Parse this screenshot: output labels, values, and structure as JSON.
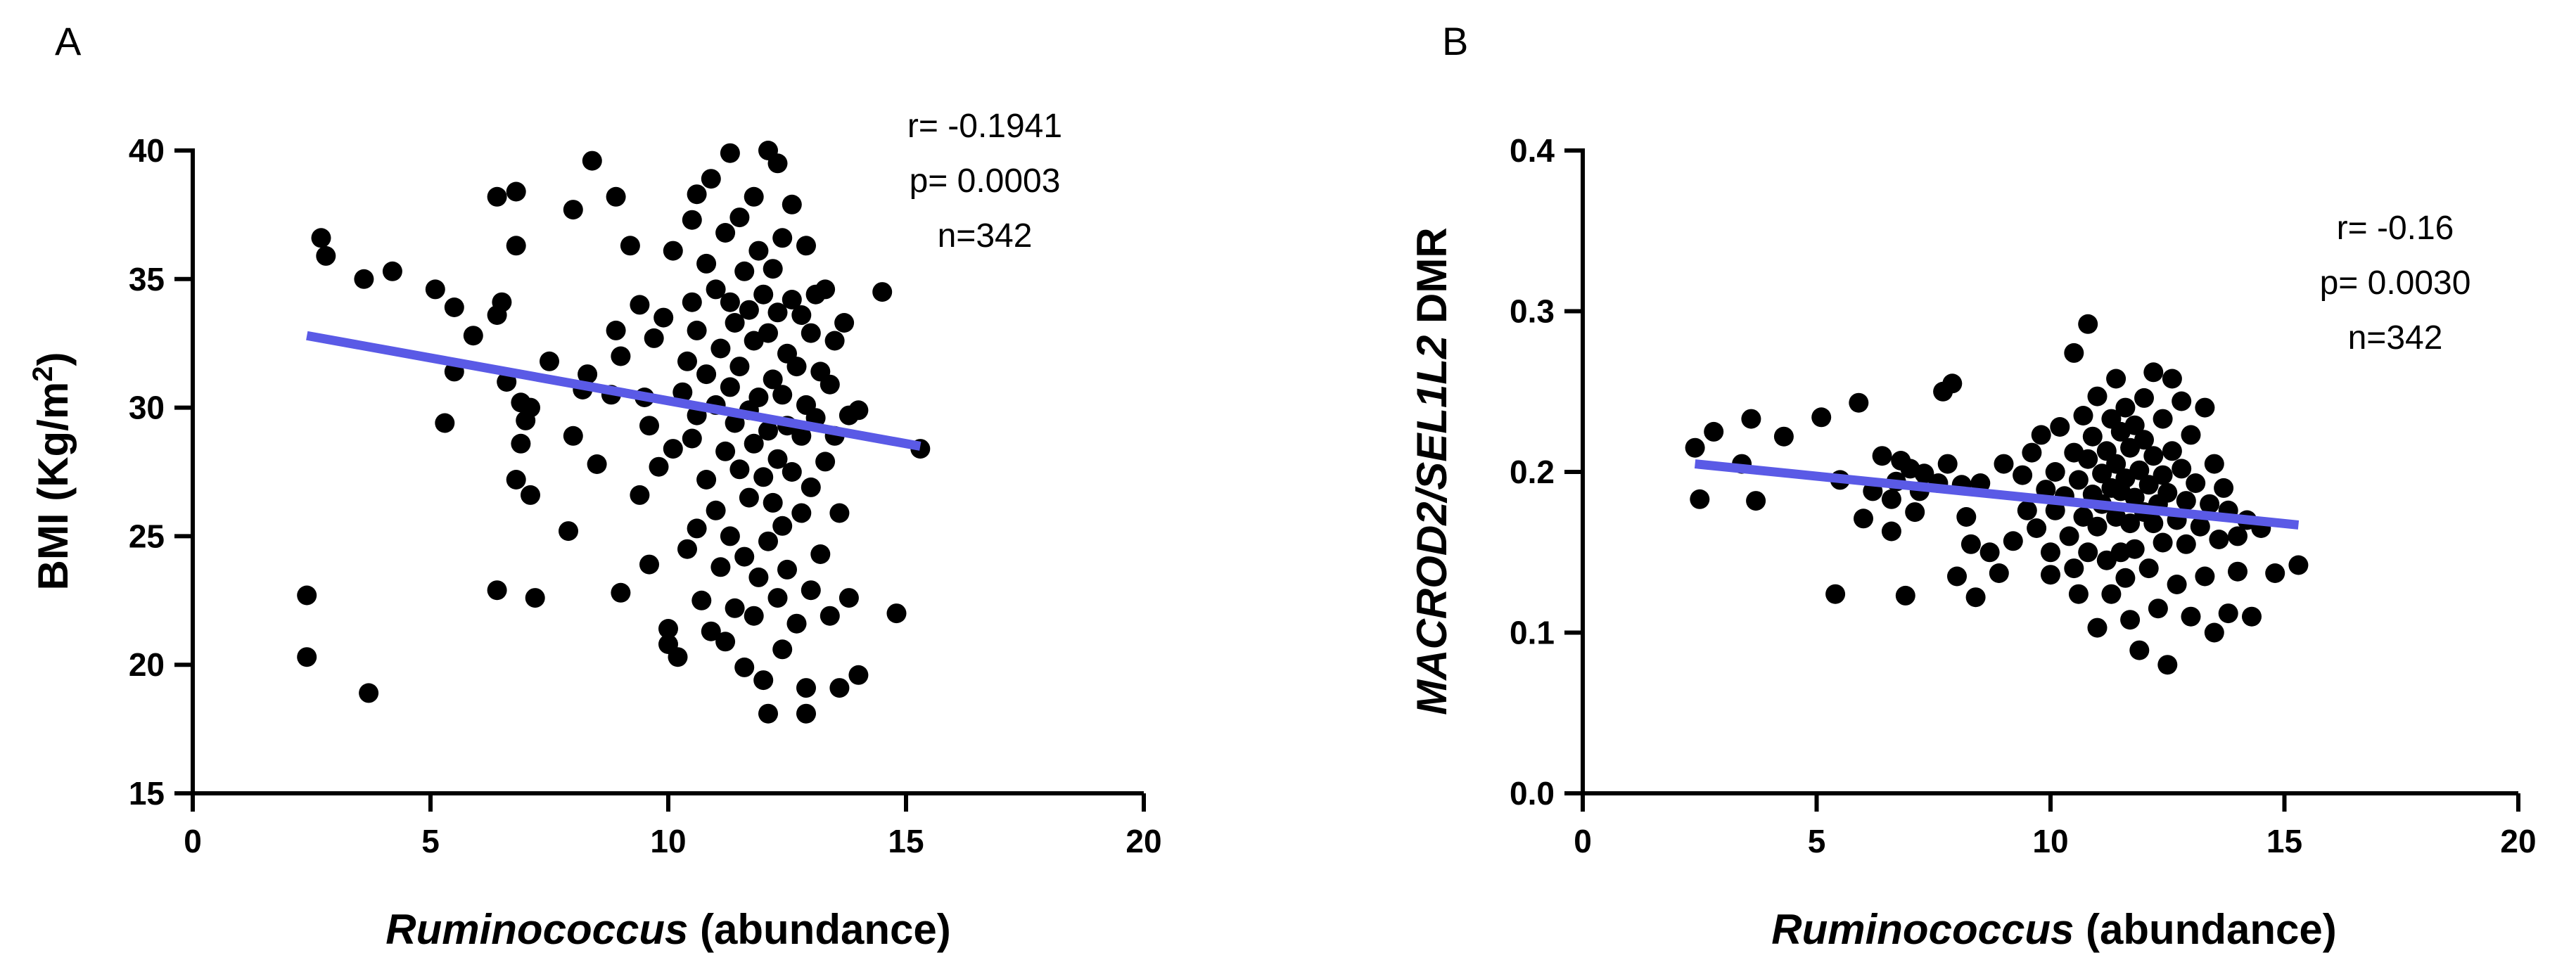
{
  "chart_data": [
    {
      "type": "scatter",
      "panel_label": "A",
      "xlabel_italic": "Ruminococcus",
      "xlabel_rest": " (abundance)",
      "ylabel": "BMI (Kg/m",
      "ylabel_sup": "2",
      "ylabel_close": ")",
      "xlim": [
        0,
        20
      ],
      "ylim": [
        15,
        40
      ],
      "xticks": [
        0,
        5,
        10,
        15,
        20
      ],
      "yticks": [
        15,
        20,
        25,
        30,
        35,
        40
      ],
      "stats": [
        "r= -0.1941",
        "p= 0.0003",
        "n=342"
      ],
      "regression": {
        "x": [
          2.4,
          15.3
        ],
        "y": [
          32.8,
          28.5
        ]
      },
      "points": [
        [
          2.4,
          22.7
        ],
        [
          2.4,
          20.3
        ],
        [
          2.7,
          36.6
        ],
        [
          2.8,
          35.9
        ],
        [
          3.6,
          35.0
        ],
        [
          3.7,
          18.9
        ],
        [
          4.2,
          35.3
        ],
        [
          5.1,
          34.6
        ],
        [
          5.3,
          29.4
        ],
        [
          5.5,
          33.9
        ],
        [
          5.5,
          31.4
        ],
        [
          5.9,
          32.8
        ],
        [
          6.4,
          38.2
        ],
        [
          6.4,
          22.9
        ],
        [
          6.4,
          33.6
        ],
        [
          6.5,
          34.1
        ],
        [
          6.6,
          31.0
        ],
        [
          6.8,
          38.4
        ],
        [
          6.8,
          36.3
        ],
        [
          6.8,
          27.2
        ],
        [
          6.9,
          28.6
        ],
        [
          6.9,
          30.2
        ],
        [
          7.0,
          29.5
        ],
        [
          7.1,
          26.6
        ],
        [
          7.1,
          30.0
        ],
        [
          7.2,
          22.6
        ],
        [
          7.5,
          31.8
        ],
        [
          7.9,
          25.2
        ],
        [
          8.0,
          37.7
        ],
        [
          8.0,
          28.9
        ],
        [
          8.2,
          30.7
        ],
        [
          8.3,
          31.3
        ],
        [
          8.4,
          39.6
        ],
        [
          8.5,
          27.8
        ],
        [
          8.8,
          30.5
        ],
        [
          8.9,
          38.2
        ],
        [
          8.9,
          33.0
        ],
        [
          9.0,
          32.0
        ],
        [
          9.0,
          22.8
        ],
        [
          9.2,
          36.3
        ],
        [
          9.4,
          26.6
        ],
        [
          9.4,
          34.0
        ],
        [
          9.5,
          30.4
        ],
        [
          9.6,
          29.3
        ],
        [
          9.6,
          23.9
        ],
        [
          9.7,
          32.7
        ],
        [
          9.8,
          27.7
        ],
        [
          9.9,
          33.5
        ],
        [
          10.0,
          21.4
        ],
        [
          10.0,
          20.8
        ],
        [
          10.1,
          36.1
        ],
        [
          10.1,
          28.4
        ],
        [
          10.2,
          20.3
        ],
        [
          10.3,
          30.6
        ],
        [
          10.4,
          31.8
        ],
        [
          10.4,
          24.5
        ],
        [
          10.5,
          37.3
        ],
        [
          10.5,
          34.1
        ],
        [
          10.5,
          28.8
        ],
        [
          10.6,
          38.3
        ],
        [
          10.6,
          33.0
        ],
        [
          10.6,
          29.7
        ],
        [
          10.6,
          25.3
        ],
        [
          10.7,
          22.5
        ],
        [
          10.8,
          35.6
        ],
        [
          10.8,
          31.3
        ],
        [
          10.8,
          27.2
        ],
        [
          10.9,
          21.3
        ],
        [
          10.9,
          38.9
        ],
        [
          11.0,
          34.6
        ],
        [
          11.0,
          30.1
        ],
        [
          11.0,
          26.0
        ],
        [
          11.1,
          23.8
        ],
        [
          11.1,
          32.3
        ],
        [
          11.2,
          36.8
        ],
        [
          11.2,
          28.3
        ],
        [
          11.2,
          20.9
        ],
        [
          11.3,
          39.9
        ],
        [
          11.3,
          34.1
        ],
        [
          11.3,
          30.8
        ],
        [
          11.3,
          25.0
        ],
        [
          11.4,
          33.3
        ],
        [
          11.4,
          29.4
        ],
        [
          11.4,
          22.2
        ],
        [
          11.5,
          37.4
        ],
        [
          11.5,
          27.6
        ],
        [
          11.5,
          31.6
        ],
        [
          11.6,
          35.3
        ],
        [
          11.6,
          24.2
        ],
        [
          11.6,
          19.9
        ],
        [
          11.7,
          29.9
        ],
        [
          11.7,
          33.8
        ],
        [
          11.7,
          26.5
        ],
        [
          11.8,
          38.2
        ],
        [
          11.8,
          32.6
        ],
        [
          11.8,
          28.6
        ],
        [
          11.8,
          21.9
        ],
        [
          11.9,
          36.1
        ],
        [
          11.9,
          30.4
        ],
        [
          11.9,
          23.4
        ],
        [
          12.0,
          34.4
        ],
        [
          12.0,
          27.3
        ],
        [
          12.0,
          19.4
        ],
        [
          12.1,
          40.0
        ],
        [
          12.1,
          32.9
        ],
        [
          12.1,
          29.1
        ],
        [
          12.1,
          24.8
        ],
        [
          12.1,
          18.1
        ],
        [
          12.2,
          35.4
        ],
        [
          12.2,
          31.1
        ],
        [
          12.2,
          26.3
        ],
        [
          12.3,
          39.5
        ],
        [
          12.3,
          33.7
        ],
        [
          12.3,
          28.0
        ],
        [
          12.3,
          22.6
        ],
        [
          12.4,
          30.5
        ],
        [
          12.4,
          36.6
        ],
        [
          12.4,
          25.4
        ],
        [
          12.4,
          20.6
        ],
        [
          12.5,
          32.1
        ],
        [
          12.5,
          29.3
        ],
        [
          12.5,
          23.7
        ],
        [
          12.6,
          37.9
        ],
        [
          12.6,
          34.2
        ],
        [
          12.6,
          27.5
        ],
        [
          12.7,
          31.6
        ],
        [
          12.7,
          21.6
        ],
        [
          12.8,
          33.6
        ],
        [
          12.8,
          28.9
        ],
        [
          12.8,
          25.9
        ],
        [
          12.9,
          36.3
        ],
        [
          12.9,
          30.1
        ],
        [
          12.9,
          19.1
        ],
        [
          12.9,
          18.1
        ],
        [
          13.0,
          32.9
        ],
        [
          13.0,
          26.9
        ],
        [
          13.0,
          22.9
        ],
        [
          13.1,
          34.4
        ],
        [
          13.1,
          29.6
        ],
        [
          13.2,
          31.4
        ],
        [
          13.2,
          24.3
        ],
        [
          13.3,
          27.9
        ],
        [
          13.3,
          34.6
        ],
        [
          13.4,
          21.9
        ],
        [
          13.4,
          30.9
        ],
        [
          13.5,
          32.6
        ],
        [
          13.5,
          28.9
        ],
        [
          13.6,
          25.9
        ],
        [
          13.6,
          19.1
        ],
        [
          13.7,
          33.3
        ],
        [
          13.8,
          29.7
        ],
        [
          13.8,
          22.6
        ],
        [
          14.0,
          29.9
        ],
        [
          14.0,
          19.6
        ],
        [
          14.5,
          34.5
        ],
        [
          14.8,
          22.0
        ],
        [
          15.3,
          28.4
        ]
      ]
    },
    {
      "type": "scatter",
      "panel_label": "B",
      "xlabel_italic": "Ruminococcus",
      "xlabel_rest": " (abundance)",
      "ylabel_italic": "MACROD2/SEL1L2",
      "ylabel_rest": " DMR",
      "xlim": [
        0,
        20
      ],
      "ylim": [
        0.0,
        0.4
      ],
      "xticks": [
        0,
        5,
        10,
        15,
        20
      ],
      "yticks": [
        "0.0",
        "0.1",
        "0.2",
        "0.3",
        "0.4"
      ],
      "stats": [
        "r= -0.16",
        "p= 0.0030",
        "n=342"
      ],
      "regression": {
        "x": [
          2.4,
          15.3
        ],
        "y": [
          0.205,
          0.167
        ]
      },
      "points": [
        [
          2.4,
          0.215
        ],
        [
          2.5,
          0.183
        ],
        [
          2.8,
          0.225
        ],
        [
          3.4,
          0.205
        ],
        [
          3.6,
          0.233
        ],
        [
          3.7,
          0.182
        ],
        [
          4.3,
          0.222
        ],
        [
          5.1,
          0.234
        ],
        [
          5.4,
          0.124
        ],
        [
          5.5,
          0.195
        ],
        [
          5.9,
          0.243
        ],
        [
          6.0,
          0.171
        ],
        [
          6.2,
          0.188
        ],
        [
          6.4,
          0.21
        ],
        [
          6.6,
          0.183
        ],
        [
          6.6,
          0.163
        ],
        [
          6.7,
          0.194
        ],
        [
          6.8,
          0.207
        ],
        [
          6.9,
          0.123
        ],
        [
          7.0,
          0.202
        ],
        [
          7.1,
          0.175
        ],
        [
          7.2,
          0.188
        ],
        [
          7.3,
          0.199
        ],
        [
          7.6,
          0.193
        ],
        [
          7.7,
          0.25
        ],
        [
          7.8,
          0.205
        ],
        [
          7.9,
          0.255
        ],
        [
          8.0,
          0.135
        ],
        [
          8.1,
          0.192
        ],
        [
          8.2,
          0.172
        ],
        [
          8.3,
          0.155
        ],
        [
          8.4,
          0.122
        ],
        [
          8.5,
          0.193
        ],
        [
          8.7,
          0.15
        ],
        [
          8.9,
          0.137
        ],
        [
          9.0,
          0.205
        ],
        [
          9.2,
          0.157
        ],
        [
          9.4,
          0.198
        ],
        [
          9.5,
          0.176
        ],
        [
          9.6,
          0.212
        ],
        [
          9.7,
          0.165
        ],
        [
          9.8,
          0.223
        ],
        [
          9.9,
          0.189
        ],
        [
          10.0,
          0.15
        ],
        [
          10.0,
          0.136
        ],
        [
          10.1,
          0.2
        ],
        [
          10.1,
          0.176
        ],
        [
          10.2,
          0.228
        ],
        [
          10.3,
          0.185
        ],
        [
          10.4,
          0.16
        ],
        [
          10.5,
          0.274
        ],
        [
          10.5,
          0.212
        ],
        [
          10.5,
          0.14
        ],
        [
          10.6,
          0.195
        ],
        [
          10.6,
          0.124
        ],
        [
          10.7,
          0.235
        ],
        [
          10.7,
          0.172
        ],
        [
          10.8,
          0.292
        ],
        [
          10.8,
          0.208
        ],
        [
          10.8,
          0.15
        ],
        [
          10.9,
          0.186
        ],
        [
          10.9,
          0.222
        ],
        [
          11.0,
          0.166
        ],
        [
          11.0,
          0.103
        ],
        [
          11.0,
          0.247
        ],
        [
          11.1,
          0.199
        ],
        [
          11.1,
          0.18
        ],
        [
          11.2,
          0.213
        ],
        [
          11.2,
          0.145
        ],
        [
          11.3,
          0.233
        ],
        [
          11.3,
          0.19
        ],
        [
          11.3,
          0.124
        ],
        [
          11.4,
          0.258
        ],
        [
          11.4,
          0.172
        ],
        [
          11.4,
          0.205
        ],
        [
          11.5,
          0.15
        ],
        [
          11.5,
          0.225
        ],
        [
          11.5,
          0.188
        ],
        [
          11.6,
          0.196
        ],
        [
          11.6,
          0.134
        ],
        [
          11.6,
          0.24
        ],
        [
          11.7,
          0.168
        ],
        [
          11.7,
          0.215
        ],
        [
          11.7,
          0.108
        ],
        [
          11.8,
          0.184
        ],
        [
          11.8,
          0.229
        ],
        [
          11.8,
          0.152
        ],
        [
          11.9,
          0.201
        ],
        [
          11.9,
          0.089
        ],
        [
          12.0,
          0.175
        ],
        [
          12.0,
          0.246
        ],
        [
          12.0,
          0.22
        ],
        [
          12.1,
          0.192
        ],
        [
          12.1,
          0.14
        ],
        [
          12.2,
          0.262
        ],
        [
          12.2,
          0.168
        ],
        [
          12.2,
          0.21
        ],
        [
          12.3,
          0.18
        ],
        [
          12.3,
          0.115
        ],
        [
          12.4,
          0.198
        ],
        [
          12.4,
          0.233
        ],
        [
          12.4,
          0.156
        ],
        [
          12.5,
          0.08
        ],
        [
          12.5,
          0.187
        ],
        [
          12.6,
          0.258
        ],
        [
          12.6,
          0.213
        ],
        [
          12.7,
          0.17
        ],
        [
          12.7,
          0.13
        ],
        [
          12.8,
          0.202
        ],
        [
          12.8,
          0.244
        ],
        [
          12.9,
          0.182
        ],
        [
          12.9,
          0.155
        ],
        [
          13.0,
          0.223
        ],
        [
          13.0,
          0.11
        ],
        [
          13.1,
          0.193
        ],
        [
          13.2,
          0.166
        ],
        [
          13.3,
          0.24
        ],
        [
          13.3,
          0.135
        ],
        [
          13.4,
          0.18
        ],
        [
          13.5,
          0.1
        ],
        [
          13.5,
          0.205
        ],
        [
          13.6,
          0.158
        ],
        [
          13.7,
          0.19
        ],
        [
          13.8,
          0.112
        ],
        [
          13.8,
          0.176
        ],
        [
          14.0,
          0.16
        ],
        [
          14.0,
          0.138
        ],
        [
          14.2,
          0.17
        ],
        [
          14.3,
          0.11
        ],
        [
          14.5,
          0.165
        ],
        [
          14.8,
          0.137
        ],
        [
          15.3,
          0.142
        ]
      ]
    }
  ]
}
